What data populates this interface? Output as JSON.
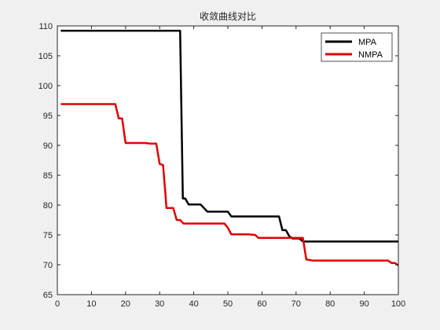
{
  "chart_data": {
    "type": "line",
    "title": "收敛曲线对比",
    "xlabel": "",
    "ylabel": "",
    "xlim": [
      0,
      100
    ],
    "ylim": [
      65,
      110
    ],
    "xticks": [
      "0",
      "10",
      "20",
      "30",
      "40",
      "50",
      "60",
      "70",
      "80",
      "90",
      "100"
    ],
    "yticks": [
      "65",
      "70",
      "75",
      "80",
      "85",
      "90",
      "95",
      "100",
      "105",
      "110"
    ],
    "grid": false,
    "legend_position": "top-right",
    "series": [
      {
        "name": "MPA",
        "color": "#000000",
        "points": [
          [
            1,
            109.2
          ],
          [
            36,
            109.2
          ],
          [
            36.8,
            81.1
          ],
          [
            37.5,
            81.1
          ],
          [
            38.5,
            80.1
          ],
          [
            42,
            80.1
          ],
          [
            44,
            78.9
          ],
          [
            50,
            78.9
          ],
          [
            51,
            78.1
          ],
          [
            65,
            78.1
          ],
          [
            66,
            75.8
          ],
          [
            67,
            75.8
          ],
          [
            68,
            74.8
          ],
          [
            69,
            74.4
          ],
          [
            71,
            74.4
          ],
          [
            72,
            73.9
          ],
          [
            100,
            73.9
          ]
        ]
      },
      {
        "name": "NMPA",
        "color": "#e00000",
        "points": [
          [
            1,
            96.9
          ],
          [
            17,
            96.9
          ],
          [
            18,
            94.5
          ],
          [
            19,
            94.5
          ],
          [
            20,
            90.4
          ],
          [
            26,
            90.4
          ],
          [
            27,
            90.3
          ],
          [
            29,
            90.3
          ],
          [
            30,
            86.9
          ],
          [
            31,
            86.7
          ],
          [
            31.6,
            82.5
          ],
          [
            32,
            79.5
          ],
          [
            34,
            79.5
          ],
          [
            35,
            77.5
          ],
          [
            36,
            77.5
          ],
          [
            37,
            76.9
          ],
          [
            49,
            76.9
          ],
          [
            50,
            76.2
          ],
          [
            51,
            75.1
          ],
          [
            56,
            75.1
          ],
          [
            58,
            75.0
          ],
          [
            59,
            74.5
          ],
          [
            72,
            74.5
          ],
          [
            73,
            70.9
          ],
          [
            74,
            70.8
          ],
          [
            75,
            70.7
          ],
          [
            97,
            70.7
          ],
          [
            98,
            70.3
          ],
          [
            99,
            70.3
          ],
          [
            100,
            69.9
          ]
        ]
      }
    ]
  }
}
